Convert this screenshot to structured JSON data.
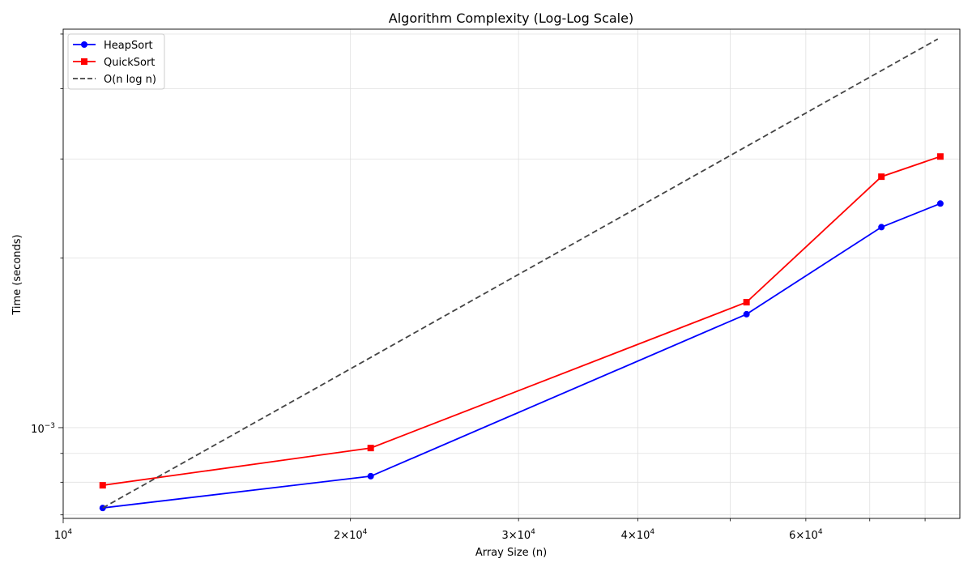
{
  "chart_data": {
    "type": "line",
    "title": "Algorithm Complexity (Log-Log Scale)",
    "xlabel": "Array Size (n)",
    "ylabel": "Time (seconds)",
    "xscale": "log",
    "yscale": "log",
    "xlim": [
      10000,
      87000
    ],
    "ylim": [
      0.00069,
      0.0051
    ],
    "grid": "on (major and minor)",
    "legend_position": "top-left",
    "x_tick_labels": [
      {
        "value": 10000,
        "base": "10",
        "exp": "4"
      },
      {
        "value": 20000,
        "base": "2×10",
        "exp": "4"
      },
      {
        "value": 30000,
        "base": "3×10",
        "exp": "4"
      },
      {
        "value": 40000,
        "base": "4×10",
        "exp": "4"
      },
      {
        "value": 60000,
        "base": "6×10",
        "exp": "4"
      }
    ],
    "y_tick_labels": [
      {
        "value": 0.001,
        "base": "10",
        "exp": "−3"
      }
    ],
    "series": [
      {
        "name": "HeapSort",
        "color": "#0000ff",
        "marker": "circle",
        "style": "solid",
        "x": [
          11000,
          21000,
          52000,
          72000,
          83000
        ],
        "y": [
          0.00072,
          0.00082,
          0.00159,
          0.00227,
          0.0025
        ]
      },
      {
        "name": "QuickSort",
        "color": "#ff0000",
        "marker": "square",
        "style": "solid",
        "x": [
          11000,
          21000,
          52000,
          72000,
          83000
        ],
        "y": [
          0.00079,
          0.00092,
          0.00167,
          0.00279,
          0.00303
        ]
      },
      {
        "name": "O(n log n)",
        "color": "#444444",
        "marker": "none",
        "style": "dashed",
        "x": [
          11000,
          82500
        ],
        "y": [
          0.00072,
          0.0049
        ]
      }
    ]
  }
}
